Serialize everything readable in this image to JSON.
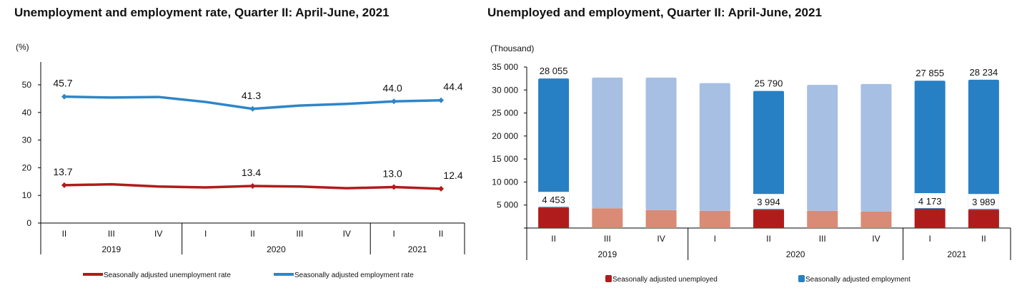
{
  "chart_data": [
    {
      "type": "line",
      "title": "Unemployment and employment rate, Quarter II: April-June, 2021",
      "ylabel": "(%)",
      "ylim": [
        0,
        50
      ],
      "yticks": [
        0,
        10,
        20,
        30,
        40,
        50
      ],
      "categories": [
        "II",
        "III",
        "IV",
        "I",
        "II",
        "III",
        "IV",
        "I",
        "II"
      ],
      "groups": [
        {
          "label": "2019",
          "count": 3
        },
        {
          "label": "2020",
          "count": 4
        },
        {
          "label": "2021",
          "count": 2
        }
      ],
      "series": [
        {
          "name": "Seasonally adjusted unemployment rate",
          "color": "#b01c1c",
          "values": [
            13.7,
            14.0,
            13.2,
            12.9,
            13.4,
            13.2,
            12.6,
            13.0,
            12.4
          ],
          "labels": [
            "13.7",
            null,
            null,
            null,
            "13.4",
            null,
            null,
            "13.0",
            "12.4"
          ]
        },
        {
          "name": "Seasonally adjusted employment rate",
          "color": "#2e86c8",
          "values": [
            45.7,
            45.4,
            45.6,
            43.8,
            41.3,
            42.5,
            43.1,
            44.0,
            44.4
          ],
          "labels": [
            "45.7",
            null,
            null,
            null,
            "41.3",
            null,
            null,
            "44.0",
            "44.4"
          ]
        }
      ],
      "legend": "bottom"
    },
    {
      "type": "bar",
      "stacked": true,
      "title": "Unemployed and employment, Quarter II: April-June, 2021",
      "ylabel": "(Thousand)",
      "ylim": [
        0,
        35000
      ],
      "yticks": [
        "",
        "5 000",
        "10 000",
        "15 000",
        "20 000",
        "25 000",
        "30 000",
        "35 000"
      ],
      "categories": [
        "II",
        "III",
        "IV",
        "I",
        "II",
        "III",
        "IV",
        "I",
        "II"
      ],
      "groups": [
        {
          "label": "2019",
          "count": 3
        },
        {
          "label": "2020",
          "count": 4
        },
        {
          "label": "2021",
          "count": 2
        }
      ],
      "highlight": [
        true,
        false,
        false,
        false,
        true,
        false,
        false,
        true,
        true
      ],
      "series": [
        {
          "name": "Seasonally adjusted unemployed",
          "color": "#b01c1c",
          "light": "#d98b75",
          "values": [
            4453,
            4300,
            3900,
            3750,
            3994,
            3750,
            3600,
            4173,
            3989
          ],
          "labels": [
            "4 453",
            null,
            null,
            null,
            "3 994",
            null,
            null,
            "4 173",
            "3 989"
          ]
        },
        {
          "name": "Seasonally adjusted employment",
          "color": "#2880c4",
          "light": "#a6bfe3",
          "values": [
            28055,
            28400,
            28800,
            27750,
            25790,
            27350,
            27700,
            27855,
            28234
          ],
          "labels": [
            "28 055",
            null,
            null,
            null,
            "25 790",
            null,
            null,
            "27 855",
            "28 234"
          ]
        }
      ],
      "legend": "bottom"
    }
  ]
}
